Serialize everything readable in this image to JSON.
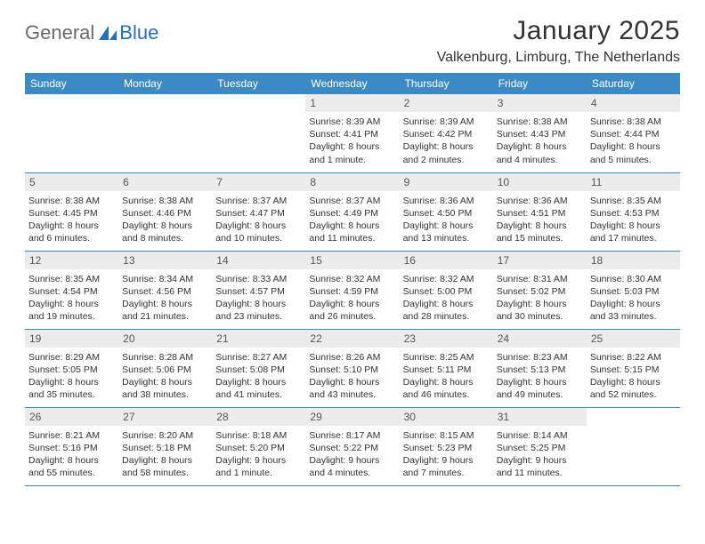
{
  "logo": {
    "word1": "General",
    "word2": "Blue"
  },
  "header": {
    "title": "January 2025",
    "location": "Valkenburg, Limburg, The Netherlands"
  },
  "colors": {
    "header_bg": "#3b8ac4",
    "header_text": "#ffffff",
    "daynum_bg": "#ececec",
    "border": "#3b8ac4",
    "logo_gray": "#6a6a6a",
    "logo_blue": "#2a6db8"
  },
  "daynames": [
    "Sunday",
    "Monday",
    "Tuesday",
    "Wednesday",
    "Thursday",
    "Friday",
    "Saturday"
  ],
  "weeks": [
    [
      {
        "n": "",
        "t": ""
      },
      {
        "n": "",
        "t": ""
      },
      {
        "n": "",
        "t": ""
      },
      {
        "n": "1",
        "t": "Sunrise: 8:39 AM\nSunset: 4:41 PM\nDaylight: 8 hours and 1 minute."
      },
      {
        "n": "2",
        "t": "Sunrise: 8:39 AM\nSunset: 4:42 PM\nDaylight: 8 hours and 2 minutes."
      },
      {
        "n": "3",
        "t": "Sunrise: 8:38 AM\nSunset: 4:43 PM\nDaylight: 8 hours and 4 minutes."
      },
      {
        "n": "4",
        "t": "Sunrise: 8:38 AM\nSunset: 4:44 PM\nDaylight: 8 hours and 5 minutes."
      }
    ],
    [
      {
        "n": "5",
        "t": "Sunrise: 8:38 AM\nSunset: 4:45 PM\nDaylight: 8 hours and 6 minutes."
      },
      {
        "n": "6",
        "t": "Sunrise: 8:38 AM\nSunset: 4:46 PM\nDaylight: 8 hours and 8 minutes."
      },
      {
        "n": "7",
        "t": "Sunrise: 8:37 AM\nSunset: 4:47 PM\nDaylight: 8 hours and 10 minutes."
      },
      {
        "n": "8",
        "t": "Sunrise: 8:37 AM\nSunset: 4:49 PM\nDaylight: 8 hours and 11 minutes."
      },
      {
        "n": "9",
        "t": "Sunrise: 8:36 AM\nSunset: 4:50 PM\nDaylight: 8 hours and 13 minutes."
      },
      {
        "n": "10",
        "t": "Sunrise: 8:36 AM\nSunset: 4:51 PM\nDaylight: 8 hours and 15 minutes."
      },
      {
        "n": "11",
        "t": "Sunrise: 8:35 AM\nSunset: 4:53 PM\nDaylight: 8 hours and 17 minutes."
      }
    ],
    [
      {
        "n": "12",
        "t": "Sunrise: 8:35 AM\nSunset: 4:54 PM\nDaylight: 8 hours and 19 minutes."
      },
      {
        "n": "13",
        "t": "Sunrise: 8:34 AM\nSunset: 4:56 PM\nDaylight: 8 hours and 21 minutes."
      },
      {
        "n": "14",
        "t": "Sunrise: 8:33 AM\nSunset: 4:57 PM\nDaylight: 8 hours and 23 minutes."
      },
      {
        "n": "15",
        "t": "Sunrise: 8:32 AM\nSunset: 4:59 PM\nDaylight: 8 hours and 26 minutes."
      },
      {
        "n": "16",
        "t": "Sunrise: 8:32 AM\nSunset: 5:00 PM\nDaylight: 8 hours and 28 minutes."
      },
      {
        "n": "17",
        "t": "Sunrise: 8:31 AM\nSunset: 5:02 PM\nDaylight: 8 hours and 30 minutes."
      },
      {
        "n": "18",
        "t": "Sunrise: 8:30 AM\nSunset: 5:03 PM\nDaylight: 8 hours and 33 minutes."
      }
    ],
    [
      {
        "n": "19",
        "t": "Sunrise: 8:29 AM\nSunset: 5:05 PM\nDaylight: 8 hours and 35 minutes."
      },
      {
        "n": "20",
        "t": "Sunrise: 8:28 AM\nSunset: 5:06 PM\nDaylight: 8 hours and 38 minutes."
      },
      {
        "n": "21",
        "t": "Sunrise: 8:27 AM\nSunset: 5:08 PM\nDaylight: 8 hours and 41 minutes."
      },
      {
        "n": "22",
        "t": "Sunrise: 8:26 AM\nSunset: 5:10 PM\nDaylight: 8 hours and 43 minutes."
      },
      {
        "n": "23",
        "t": "Sunrise: 8:25 AM\nSunset: 5:11 PM\nDaylight: 8 hours and 46 minutes."
      },
      {
        "n": "24",
        "t": "Sunrise: 8:23 AM\nSunset: 5:13 PM\nDaylight: 8 hours and 49 minutes."
      },
      {
        "n": "25",
        "t": "Sunrise: 8:22 AM\nSunset: 5:15 PM\nDaylight: 8 hours and 52 minutes."
      }
    ],
    [
      {
        "n": "26",
        "t": "Sunrise: 8:21 AM\nSunset: 5:16 PM\nDaylight: 8 hours and 55 minutes."
      },
      {
        "n": "27",
        "t": "Sunrise: 8:20 AM\nSunset: 5:18 PM\nDaylight: 8 hours and 58 minutes."
      },
      {
        "n": "28",
        "t": "Sunrise: 8:18 AM\nSunset: 5:20 PM\nDaylight: 9 hours and 1 minute."
      },
      {
        "n": "29",
        "t": "Sunrise: 8:17 AM\nSunset: 5:22 PM\nDaylight: 9 hours and 4 minutes."
      },
      {
        "n": "30",
        "t": "Sunrise: 8:15 AM\nSunset: 5:23 PM\nDaylight: 9 hours and 7 minutes."
      },
      {
        "n": "31",
        "t": "Sunrise: 8:14 AM\nSunset: 5:25 PM\nDaylight: 9 hours and 11 minutes."
      },
      {
        "n": "",
        "t": ""
      }
    ]
  ]
}
